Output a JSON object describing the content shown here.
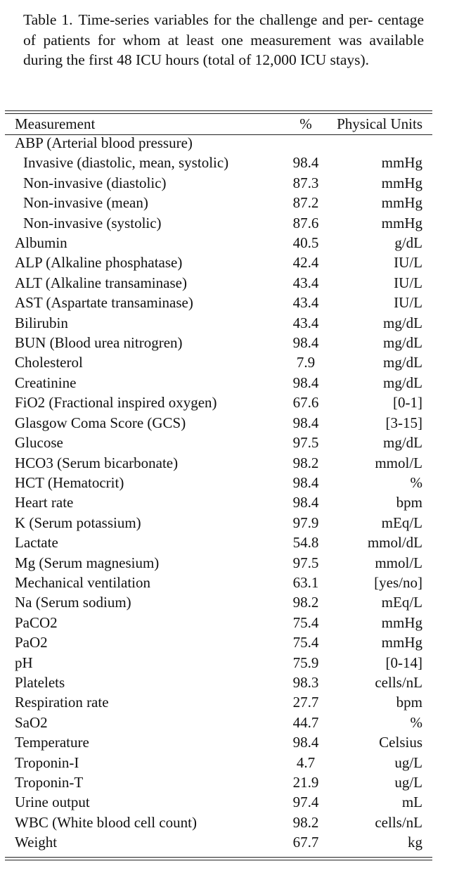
{
  "caption": {
    "label": "Table 1.",
    "text": "Time-series variables for the challenge and per- centage of patients for whom at least one measurement was available during the first 48 ICU hours (total of 12,000 ICU stays)."
  },
  "table": {
    "headers": [
      "Measurement",
      "%",
      "Physical Units"
    ],
    "rows": [
      {
        "name": "ABP (Arterial blood pressure)",
        "pct": "",
        "unit": "",
        "indent": false
      },
      {
        "name": "Invasive (diastolic, mean, systolic)",
        "pct": "98.4",
        "unit": "mmHg",
        "indent": true
      },
      {
        "name": "Non-invasive (diastolic)",
        "pct": "87.3",
        "unit": "mmHg",
        "indent": true
      },
      {
        "name": "Non-invasive (mean)",
        "pct": "87.2",
        "unit": "mmHg",
        "indent": true
      },
      {
        "name": "Non-invasive (systolic)",
        "pct": "87.6",
        "unit": "mmHg",
        "indent": true
      },
      {
        "name": "Albumin",
        "pct": "40.5",
        "unit": "g/dL",
        "indent": false
      },
      {
        "name": "ALP (Alkaline phosphatase)",
        "pct": "42.4",
        "unit": "IU/L",
        "indent": false
      },
      {
        "name": "ALT (Alkaline transaminase)",
        "pct": "43.4",
        "unit": "IU/L",
        "indent": false
      },
      {
        "name": "AST (Aspartate transaminase)",
        "pct": "43.4",
        "unit": "IU/L",
        "indent": false
      },
      {
        "name": "Bilirubin",
        "pct": "43.4",
        "unit": "mg/dL",
        "indent": false
      },
      {
        "name": "BUN (Blood urea nitrogren)",
        "pct": "98.4",
        "unit": "mg/dL",
        "indent": false
      },
      {
        "name": "Cholesterol",
        "pct": "7.9",
        "unit": "mg/dL",
        "indent": false
      },
      {
        "name": "Creatinine",
        "pct": "98.4",
        "unit": "mg/dL",
        "indent": false
      },
      {
        "name": "FiO2 (Fractional inspired oxygen)",
        "pct": "67.6",
        "unit": "[0-1]",
        "indent": false
      },
      {
        "name": "Glasgow Coma Score (GCS)",
        "pct": "98.4",
        "unit": "[3-15]",
        "indent": false
      },
      {
        "name": "Glucose",
        "pct": "97.5",
        "unit": "mg/dL",
        "indent": false
      },
      {
        "name": "HCO3 (Serum bicarbonate)",
        "pct": "98.2",
        "unit": "mmol/L",
        "indent": false
      },
      {
        "name": "HCT (Hematocrit)",
        "pct": "98.4",
        "unit": "%",
        "indent": false
      },
      {
        "name": "Heart rate",
        "pct": "98.4",
        "unit": "bpm",
        "indent": false
      },
      {
        "name": "K (Serum potassium)",
        "pct": "97.9",
        "unit": "mEq/L",
        "indent": false
      },
      {
        "name": "Lactate",
        "pct": "54.8",
        "unit": "mmol/dL",
        "indent": false
      },
      {
        "name": "Mg (Serum magnesium)",
        "pct": "97.5",
        "unit": "mmol/L",
        "indent": false
      },
      {
        "name": "Mechanical ventilation",
        "pct": "63.1",
        "unit": "[yes/no]",
        "indent": false
      },
      {
        "name": "Na (Serum sodium)",
        "pct": "98.2",
        "unit": "mEq/L",
        "indent": false
      },
      {
        "name": "PaCO2",
        "pct": "75.4",
        "unit": "mmHg",
        "indent": false
      },
      {
        "name": "PaO2",
        "pct": "75.4",
        "unit": "mmHg",
        "indent": false
      },
      {
        "name": "pH",
        "pct": "75.9",
        "unit": "[0-14]",
        "indent": false
      },
      {
        "name": "Platelets",
        "pct": "98.3",
        "unit": "cells/nL",
        "indent": false
      },
      {
        "name": "Respiration rate",
        "pct": "27.7",
        "unit": "bpm",
        "indent": false
      },
      {
        "name": "SaO2",
        "pct": "44.7",
        "unit": "%",
        "indent": false
      },
      {
        "name": "Temperature",
        "pct": "98.4",
        "unit": "Celsius",
        "indent": false
      },
      {
        "name": "Troponin-I",
        "pct": "4.7",
        "unit": "ug/L",
        "indent": false
      },
      {
        "name": "Troponin-T",
        "pct": "21.9",
        "unit": "ug/L",
        "indent": false
      },
      {
        "name": "Urine output",
        "pct": "97.4",
        "unit": "mL",
        "indent": false
      },
      {
        "name": "WBC (White blood cell count)",
        "pct": "98.2",
        "unit": "cells/nL",
        "indent": false
      },
      {
        "name": "Weight",
        "pct": "67.7",
        "unit": "kg",
        "indent": false
      }
    ]
  }
}
